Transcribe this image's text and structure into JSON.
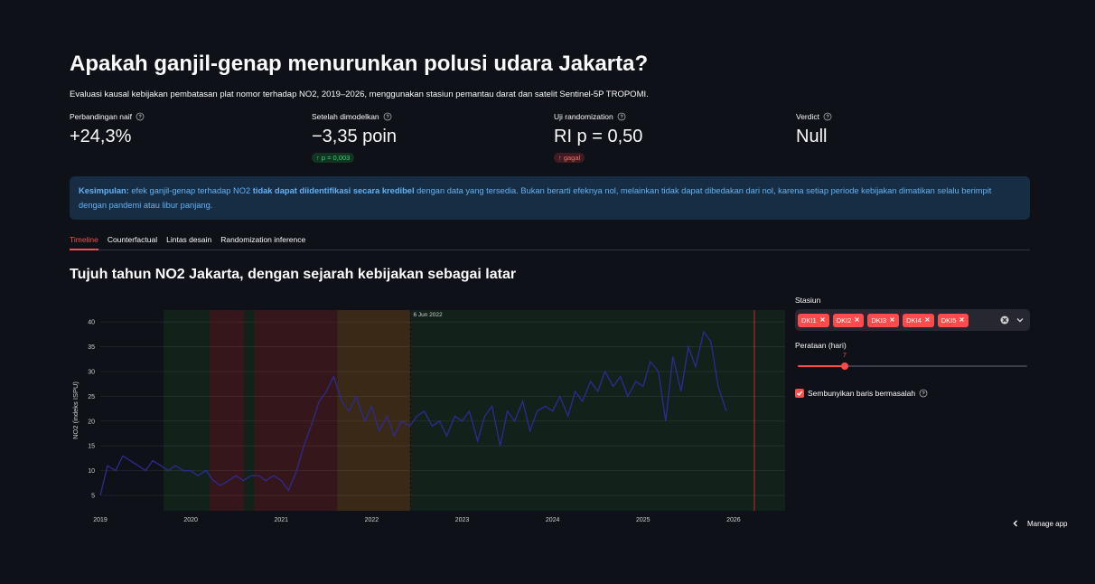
{
  "header": {
    "title": "Apakah ganjil-genap menurunkan polusi udara Jakarta?",
    "subtitle": "Evaluasi kausal kebijakan pembatasan plat nomor terhadap NO2, 2019–2026, menggunakan stasiun pemantau darat dan satelit Sentinel-5P TROPOMI."
  },
  "metrics": [
    {
      "label": "Perbandingan naif",
      "value": "+24,3%"
    },
    {
      "label": "Setelah dimodelkan",
      "value": "−3,35 poin",
      "delta": "↑ p = 0,003",
      "delta_color": "green"
    },
    {
      "label": "Uji randomization",
      "value": "RI p = 0,50",
      "delta": "↑ gagal",
      "delta_color": "red"
    },
    {
      "label": "Verdict",
      "value": "Null"
    }
  ],
  "info": {
    "segments": [
      {
        "text": "Kesimpulan:",
        "bold": true
      },
      {
        "text": " efek ganjil-genap terhadap NO2 ",
        "bold": false
      },
      {
        "text": "tidak dapat diidentifikasi secara kredibel",
        "bold": true
      },
      {
        "text": " dengan data yang tersedia. Bukan berarti efeknya nol, melainkan tidak dapat dibedakan dari nol, karena setiap periode kebijakan dimatikan selalu berimpit dengan pandemi atau libur panjang.",
        "bold": false
      }
    ]
  },
  "tabs": {
    "items": [
      "Timeline",
      "Counterfactual",
      "Lintas desain",
      "Randomization inference"
    ],
    "active": 0
  },
  "section_title": "Tujuh tahun NO2 Jakarta, dengan sejarah kebijakan sebagai latar",
  "chart_data": {
    "type": "line",
    "y_label": "NO2 (indeks ISPU)",
    "color": "#2d2b93",
    "xlim": [
      2019,
      2026.57
    ],
    "ylim": [
      1.9,
      42.4
    ],
    "xticks": [
      2019,
      2020,
      2021,
      2022,
      2023,
      2024,
      2025,
      2026
    ],
    "yticks": [
      5,
      10,
      15,
      20,
      25,
      30,
      35,
      40
    ],
    "grid": true,
    "regions": [
      {
        "x0": 2019.7,
        "x1": 2020.21,
        "color": "rgba(46,125,50,0.16)"
      },
      {
        "x0": 2020.21,
        "x1": 2020.59,
        "color": "rgba(198,40,40,0.22)"
      },
      {
        "x0": 2020.59,
        "x1": 2020.7,
        "color": "rgba(46,125,50,0.16)"
      },
      {
        "x0": 2020.7,
        "x1": 2021.62,
        "color": "rgba(198,40,40,0.22)"
      },
      {
        "x0": 2021.62,
        "x1": 2022.43,
        "color": "rgba(230,140,20,0.2)"
      },
      {
        "x0": 2022.43,
        "x1": 2026.57,
        "color": "rgba(46,125,50,0.16)"
      },
      {
        "x0": 2026.22,
        "x1": 2026.24,
        "color": "rgba(198,40,40,0.5)"
      }
    ],
    "annotation": {
      "text": "6 Jun 2022",
      "x": 2022.43
    },
    "x": [
      2019,
      2019.08,
      2019.17,
      2019.25,
      2019.33,
      2019.42,
      2019.5,
      2019.58,
      2019.67,
      2019.75,
      2019.83,
      2019.92,
      2020,
      2020.08,
      2020.17,
      2020.25,
      2020.33,
      2020.42,
      2020.5,
      2020.58,
      2020.67,
      2020.75,
      2020.83,
      2020.92,
      2021,
      2021.08,
      2021.17,
      2021.25,
      2021.33,
      2021.42,
      2021.5,
      2021.58,
      2021.67,
      2021.75,
      2021.83,
      2021.92,
      2022,
      2022.08,
      2022.17,
      2022.25,
      2022.33,
      2022.42,
      2022.5,
      2022.58,
      2022.67,
      2022.75,
      2022.83,
      2022.92,
      2023,
      2023.08,
      2023.17,
      2023.25,
      2023.33,
      2023.42,
      2023.5,
      2023.58,
      2023.67,
      2023.75,
      2023.83,
      2023.92,
      2024,
      2024.08,
      2024.17,
      2024.25,
      2024.33,
      2024.42,
      2024.5,
      2024.58,
      2024.67,
      2024.75,
      2024.83,
      2024.92,
      2025,
      2025.08,
      2025.17,
      2025.25,
      2025.33,
      2025.42,
      2025.5,
      2025.58,
      2025.67,
      2025.75,
      2025.83,
      2025.92
    ],
    "values": [
      5,
      11,
      10,
      13,
      12,
      11,
      10,
      12,
      11,
      10,
      11,
      10,
      10,
      9,
      10,
      8,
      7,
      8,
      9,
      8,
      9,
      9,
      8,
      9,
      8,
      6,
      10,
      15,
      19,
      24,
      26,
      29,
      24,
      22,
      25,
      20,
      23,
      18,
      21,
      17,
      20,
      19,
      21,
      22,
      19,
      20,
      17,
      21,
      20,
      22,
      16,
      21,
      23,
      15,
      22,
      20,
      24,
      18,
      22,
      23,
      22,
      25,
      21,
      26,
      24,
      28,
      26,
      30,
      27,
      29,
      25,
      28,
      27,
      32,
      30,
      20,
      33,
      26,
      35,
      31,
      38,
      36,
      27,
      22
    ]
  },
  "sidebar": {
    "station_label": "Stasiun",
    "stations": [
      "DKI1",
      "DKI2",
      "DKI3",
      "DKI4",
      "DKI5"
    ],
    "smoothing_label": "Perataan (hari)",
    "smoothing_value": 7,
    "checkbox_label": "Sembunyikan baris bermasalah",
    "checkbox_checked": true
  },
  "footer": {
    "manage": "Manage app"
  }
}
